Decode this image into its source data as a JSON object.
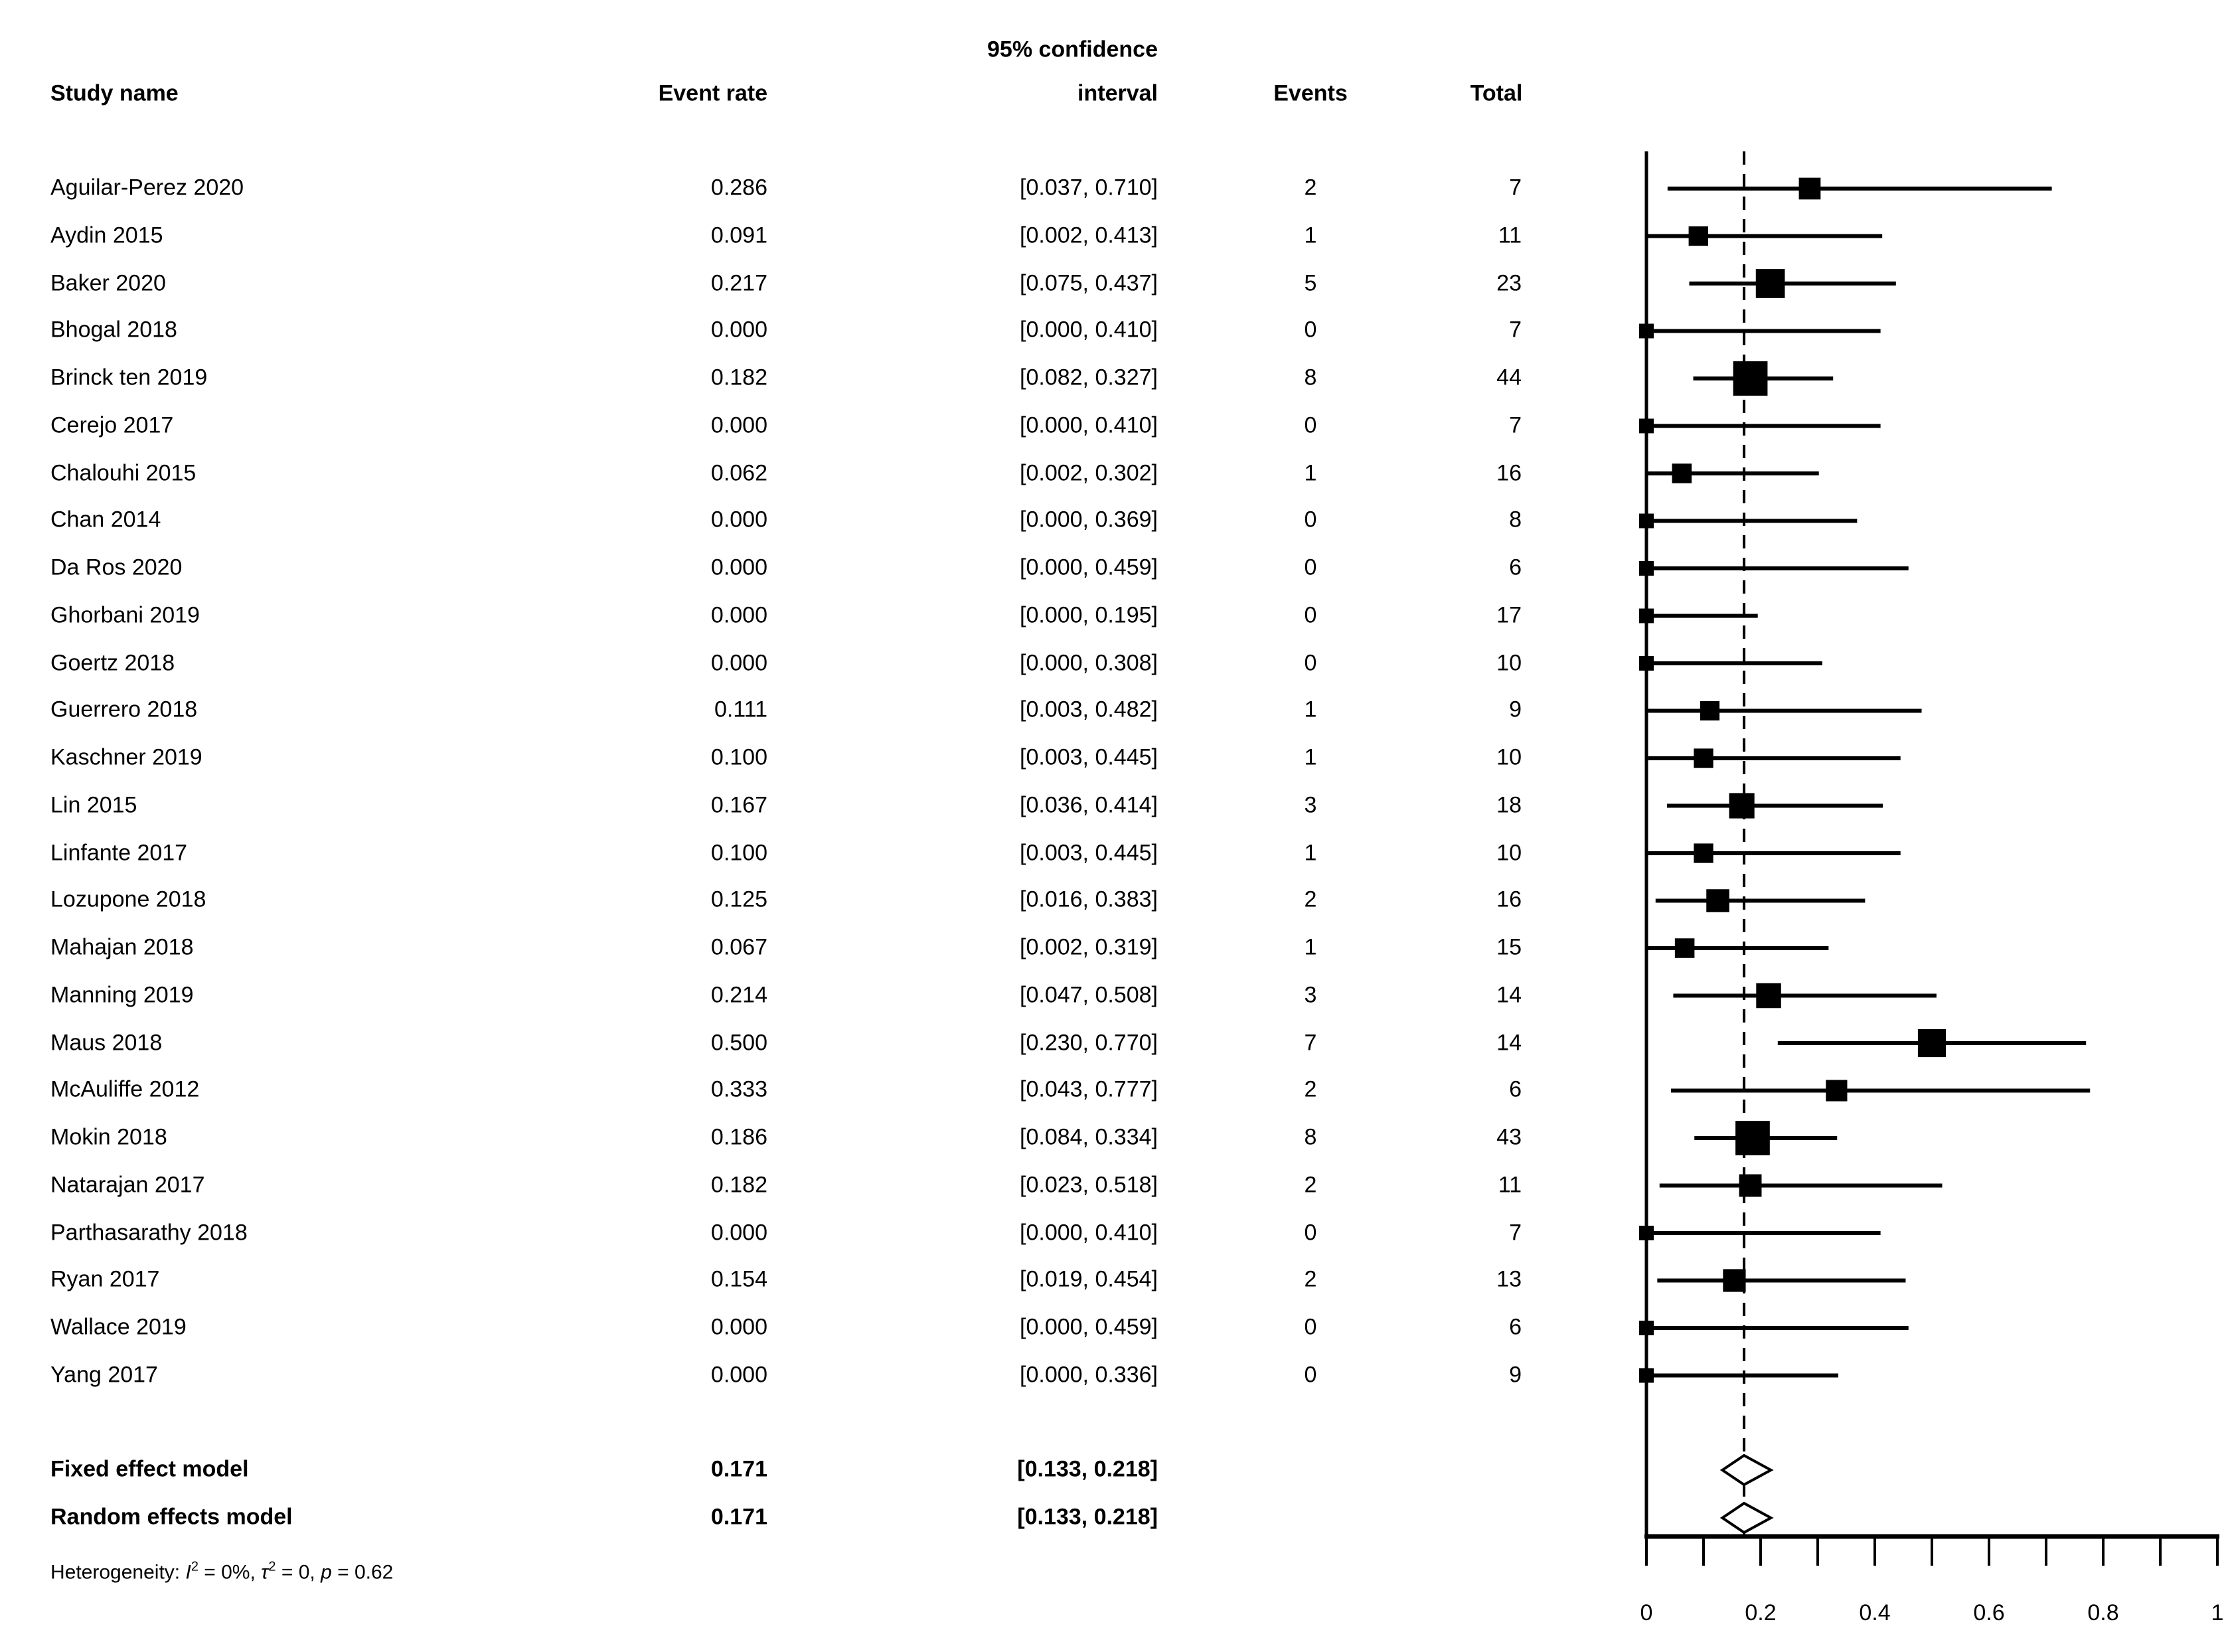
{
  "figure": {
    "type_label": "forest plot",
    "background": "#ffffff",
    "ink_color": "#000000"
  },
  "table": {
    "headers": {
      "study": "Study name",
      "event_rate": "Event rate",
      "ci_line1": "95% confidence",
      "ci_line2": "interval",
      "events": "Events",
      "total": "Total"
    }
  },
  "chart_data": {
    "type": "scatter",
    "variant": "forest-plot-meta-analysis",
    "title": "",
    "xlabel": "",
    "ylabel": "",
    "grid": false,
    "legend": "none",
    "x_axis": {
      "min": 0,
      "max": 1,
      "major_tick_labels": [
        "0",
        "0.2",
        "0.4",
        "0.6",
        "0.8",
        "1"
      ],
      "major_tick_values": [
        0,
        0.2,
        0.4,
        0.6,
        0.8,
        1
      ],
      "minor_tick_step": 0.1
    },
    "reference_line_value": 0.171,
    "studies": [
      {
        "name": "Aguilar-Perez 2020",
        "event_rate": "0.286",
        "rate": 0.286,
        "ci_text": "[0.037, 0.710]",
        "lower": 0.037,
        "upper": 0.71,
        "events": 2,
        "total": 7
      },
      {
        "name": "Aydin 2015",
        "event_rate": "0.091",
        "rate": 0.091,
        "ci_text": "[0.002, 0.413]",
        "lower": 0.002,
        "upper": 0.413,
        "events": 1,
        "total": 11
      },
      {
        "name": "Baker 2020",
        "event_rate": "0.217",
        "rate": 0.217,
        "ci_text": "[0.075, 0.437]",
        "lower": 0.075,
        "upper": 0.437,
        "events": 5,
        "total": 23
      },
      {
        "name": "Bhogal 2018",
        "event_rate": "0.000",
        "rate": 0.0,
        "ci_text": "[0.000, 0.410]",
        "lower": 0.0,
        "upper": 0.41,
        "events": 0,
        "total": 7
      },
      {
        "name": "Brinck ten 2019",
        "event_rate": "0.182",
        "rate": 0.182,
        "ci_text": "[0.082, 0.327]",
        "lower": 0.082,
        "upper": 0.327,
        "events": 8,
        "total": 44
      },
      {
        "name": "Cerejo 2017",
        "event_rate": "0.000",
        "rate": 0.0,
        "ci_text": "[0.000, 0.410]",
        "lower": 0.0,
        "upper": 0.41,
        "events": 0,
        "total": 7
      },
      {
        "name": "Chalouhi 2015",
        "event_rate": "0.062",
        "rate": 0.062,
        "ci_text": "[0.002, 0.302]",
        "lower": 0.002,
        "upper": 0.302,
        "events": 1,
        "total": 16
      },
      {
        "name": "Chan 2014",
        "event_rate": "0.000",
        "rate": 0.0,
        "ci_text": "[0.000, 0.369]",
        "lower": 0.0,
        "upper": 0.369,
        "events": 0,
        "total": 8
      },
      {
        "name": "Da Ros 2020",
        "event_rate": "0.000",
        "rate": 0.0,
        "ci_text": "[0.000, 0.459]",
        "lower": 0.0,
        "upper": 0.459,
        "events": 0,
        "total": 6
      },
      {
        "name": "Ghorbani 2019",
        "event_rate": "0.000",
        "rate": 0.0,
        "ci_text": "[0.000, 0.195]",
        "lower": 0.0,
        "upper": 0.195,
        "events": 0,
        "total": 17
      },
      {
        "name": "Goertz 2018",
        "event_rate": "0.000",
        "rate": 0.0,
        "ci_text": "[0.000, 0.308]",
        "lower": 0.0,
        "upper": 0.308,
        "events": 0,
        "total": 10
      },
      {
        "name": "Guerrero 2018",
        "event_rate": "0.111",
        "rate": 0.111,
        "ci_text": "[0.003, 0.482]",
        "lower": 0.003,
        "upper": 0.482,
        "events": 1,
        "total": 9
      },
      {
        "name": "Kaschner 2019",
        "event_rate": "0.100",
        "rate": 0.1,
        "ci_text": "[0.003, 0.445]",
        "lower": 0.003,
        "upper": 0.445,
        "events": 1,
        "total": 10
      },
      {
        "name": "Lin 2015",
        "event_rate": "0.167",
        "rate": 0.167,
        "ci_text": "[0.036, 0.414]",
        "lower": 0.036,
        "upper": 0.414,
        "events": 3,
        "total": 18
      },
      {
        "name": "Linfante 2017",
        "event_rate": "0.100",
        "rate": 0.1,
        "ci_text": "[0.003, 0.445]",
        "lower": 0.003,
        "upper": 0.445,
        "events": 1,
        "total": 10
      },
      {
        "name": "Lozupone 2018",
        "event_rate": "0.125",
        "rate": 0.125,
        "ci_text": "[0.016, 0.383]",
        "lower": 0.016,
        "upper": 0.383,
        "events": 2,
        "total": 16
      },
      {
        "name": "Mahajan 2018",
        "event_rate": "0.067",
        "rate": 0.067,
        "ci_text": "[0.002, 0.319]",
        "lower": 0.002,
        "upper": 0.319,
        "events": 1,
        "total": 15
      },
      {
        "name": "Manning 2019",
        "event_rate": "0.214",
        "rate": 0.214,
        "ci_text": "[0.047, 0.508]",
        "lower": 0.047,
        "upper": 0.508,
        "events": 3,
        "total": 14
      },
      {
        "name": "Maus 2018",
        "event_rate": "0.500",
        "rate": 0.5,
        "ci_text": "[0.230, 0.770]",
        "lower": 0.23,
        "upper": 0.77,
        "events": 7,
        "total": 14
      },
      {
        "name": "McAuliffe 2012",
        "event_rate": "0.333",
        "rate": 0.333,
        "ci_text": "[0.043, 0.777]",
        "lower": 0.043,
        "upper": 0.777,
        "events": 2,
        "total": 6
      },
      {
        "name": "Mokin 2018",
        "event_rate": "0.186",
        "rate": 0.186,
        "ci_text": "[0.084, 0.334]",
        "lower": 0.084,
        "upper": 0.334,
        "events": 8,
        "total": 43
      },
      {
        "name": "Natarajan 2017",
        "event_rate": "0.182",
        "rate": 0.182,
        "ci_text": "[0.023, 0.518]",
        "lower": 0.023,
        "upper": 0.518,
        "events": 2,
        "total": 11
      },
      {
        "name": "Parthasarathy 2018",
        "event_rate": "0.000",
        "rate": 0.0,
        "ci_text": "[0.000, 0.410]",
        "lower": 0.0,
        "upper": 0.41,
        "events": 0,
        "total": 7
      },
      {
        "name": "Ryan 2017",
        "event_rate": "0.154",
        "rate": 0.154,
        "ci_text": "[0.019, 0.454]",
        "lower": 0.019,
        "upper": 0.454,
        "events": 2,
        "total": 13
      },
      {
        "name": "Wallace 2019",
        "event_rate": "0.000",
        "rate": 0.0,
        "ci_text": "[0.000, 0.459]",
        "lower": 0.0,
        "upper": 0.459,
        "events": 0,
        "total": 6
      },
      {
        "name": "Yang 2017",
        "event_rate": "0.000",
        "rate": 0.0,
        "ci_text": "[0.000, 0.336]",
        "lower": 0.0,
        "upper": 0.336,
        "events": 0,
        "total": 9
      }
    ],
    "summary": {
      "fixed": {
        "label": "Fixed effect model",
        "event_rate": "0.171",
        "rate": 0.171,
        "ci_text": "[0.133, 0.218]",
        "lower": 0.133,
        "upper": 0.218
      },
      "random": {
        "label": "Random effects model",
        "event_rate": "0.171",
        "rate": 0.171,
        "ci_text": "[0.133, 0.218]",
        "lower": 0.133,
        "upper": 0.218
      }
    },
    "heterogeneity": {
      "prefix": "Heterogeneity: ",
      "i_symbol": "I",
      "i_sup": "2",
      "i_rest": " = 0%, ",
      "tau_symbol": "τ",
      "tau_sup": "2",
      "tau_rest": " = 0, ",
      "p_symbol": "p",
      "p_rest": " = 0.62"
    }
  }
}
